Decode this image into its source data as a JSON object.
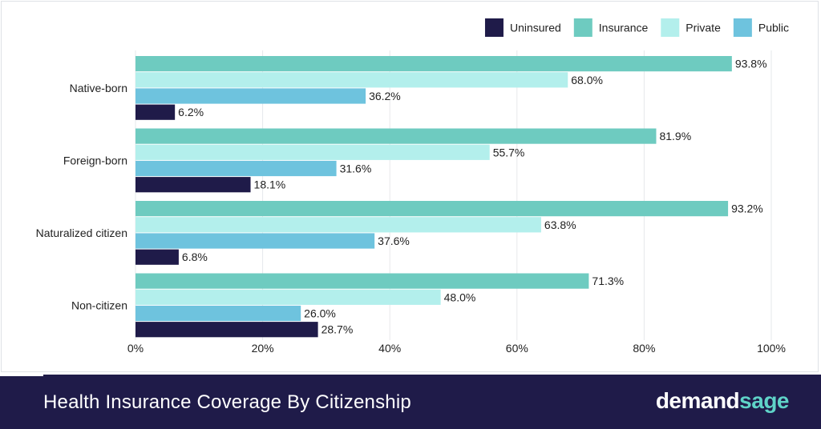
{
  "chart_data": {
    "type": "bar",
    "orientation": "horizontal",
    "categories": [
      "Native-born",
      "Foreign-born",
      "Naturalized citizen",
      "Non-citizen"
    ],
    "series": [
      {
        "name": "Insurance",
        "color": "#6ecbc0",
        "values": [
          93.8,
          81.9,
          93.2,
          71.3
        ]
      },
      {
        "name": "Private",
        "color": "#b3efec",
        "values": [
          68.0,
          55.7,
          63.8,
          48.0
        ]
      },
      {
        "name": "Public",
        "color": "#6ec3de",
        "values": [
          36.2,
          31.6,
          37.6,
          26.0
        ]
      },
      {
        "name": "Uninsured",
        "color": "#1f1b49",
        "values": [
          6.2,
          18.1,
          6.8,
          28.7
        ]
      }
    ],
    "legend_order": [
      "Uninsured",
      "Insurance",
      "Private",
      "Public"
    ],
    "legend_position": "top-right",
    "value_suffix": "%",
    "xlim": [
      0,
      100
    ],
    "xticks": [
      0,
      20,
      40,
      60,
      80,
      100
    ],
    "grid": true
  },
  "footer": {
    "title": "Health Insurance Coverage By Citizenship",
    "brand_part1": "demand",
    "brand_part2": "sage"
  }
}
